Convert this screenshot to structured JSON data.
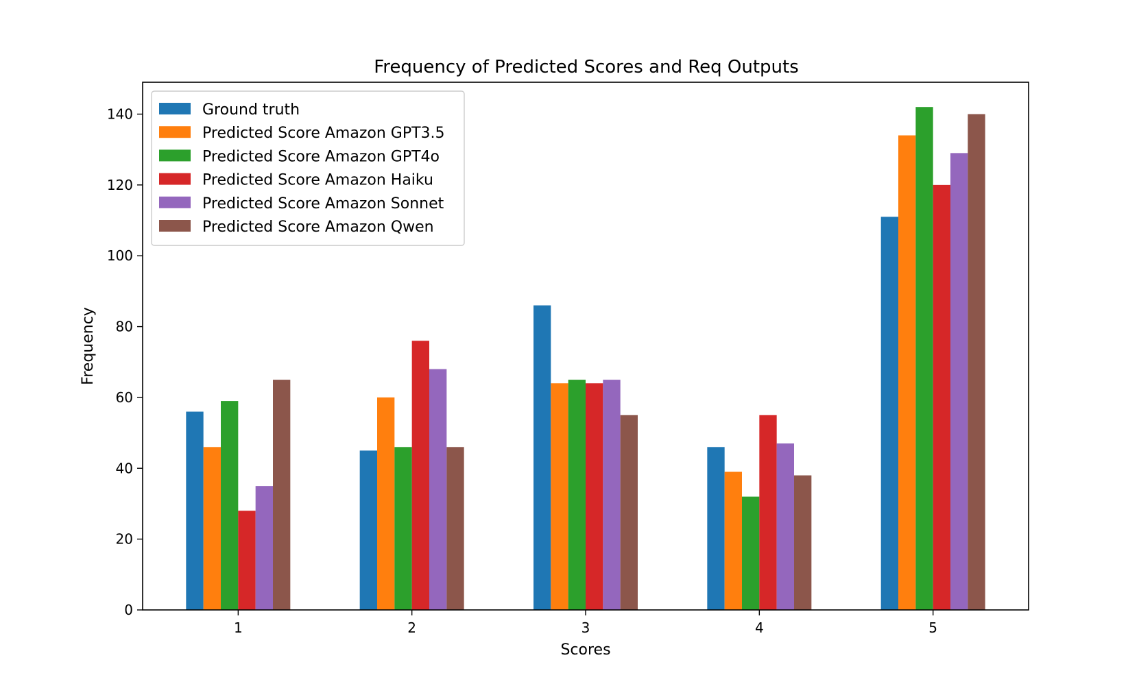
{
  "chart_data": {
    "type": "bar",
    "title": "Frequency of Predicted Scores and Req Outputs",
    "xlabel": "Scores",
    "ylabel": "Frequency",
    "categories": [
      "1",
      "2",
      "3",
      "4",
      "5"
    ],
    "ylim": [
      0,
      149
    ],
    "yticks": [
      0,
      20,
      40,
      60,
      80,
      100,
      120,
      140
    ],
    "grid": false,
    "legend_position": "top-left",
    "series": [
      {
        "name": "Ground truth",
        "color": "#1f77b4",
        "values": [
          56,
          45,
          86,
          46,
          111
        ]
      },
      {
        "name": "Predicted Score Amazon GPT3.5",
        "color": "#ff7f0e",
        "values": [
          46,
          60,
          64,
          39,
          134
        ]
      },
      {
        "name": "Predicted Score Amazon GPT4o",
        "color": "#2ca02c",
        "values": [
          59,
          46,
          65,
          32,
          142
        ]
      },
      {
        "name": "Predicted Score Amazon Haiku",
        "color": "#d62728",
        "values": [
          28,
          76,
          64,
          55,
          120
        ]
      },
      {
        "name": "Predicted Score Amazon Sonnet",
        "color": "#9467bd",
        "values": [
          35,
          68,
          65,
          47,
          129
        ]
      },
      {
        "name": "Predicted Score Amazon Qwen",
        "color": "#8c564b",
        "values": [
          65,
          46,
          55,
          38,
          140
        ]
      }
    ]
  }
}
